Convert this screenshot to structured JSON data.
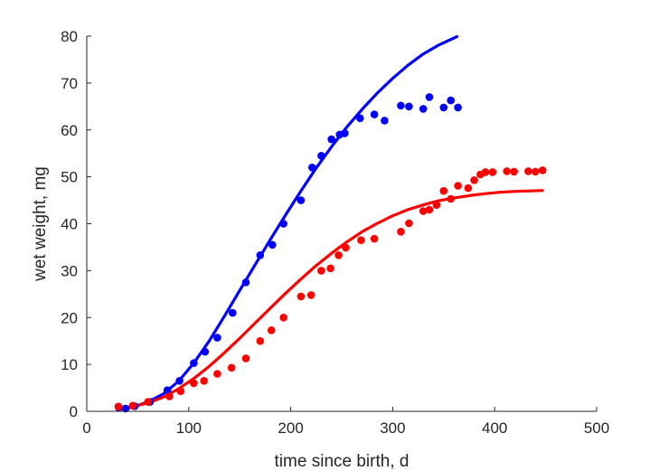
{
  "chart_data": {
    "type": "scatter",
    "xlabel": "time since birth, d",
    "ylabel": "wet weight, mg",
    "xlim": [
      0,
      500
    ],
    "ylim": [
      0,
      80
    ],
    "xticks": [
      "0",
      "100",
      "200",
      "300",
      "400",
      "500"
    ],
    "yticks": [
      "0",
      "10",
      "20",
      "30",
      "40",
      "50",
      "60",
      "70",
      "80"
    ],
    "grid": false,
    "legend": "none",
    "series": [
      {
        "color": "#0000ff",
        "points": [
          [
            31,
            1.0
          ],
          [
            38,
            0.6
          ],
          [
            47,
            1.1
          ],
          [
            62,
            2.0
          ],
          [
            79,
            4.5
          ],
          [
            91,
            6.5
          ],
          [
            105,
            10.3
          ],
          [
            116,
            12.7
          ],
          [
            128,
            15.7
          ],
          [
            143,
            21.0
          ],
          [
            156,
            27.5
          ],
          [
            170,
            33.3
          ],
          [
            182,
            35.5
          ],
          [
            193,
            40.0
          ],
          [
            210,
            45.0
          ],
          [
            221,
            52.0
          ],
          [
            230,
            54.5
          ],
          [
            240,
            58.0
          ],
          [
            248,
            59.0
          ],
          [
            253,
            59.3
          ],
          [
            268,
            62.5
          ],
          [
            282,
            63.3
          ],
          [
            292,
            62.0
          ],
          [
            308,
            65.2
          ],
          [
            316,
            65.0
          ],
          [
            330,
            64.5
          ],
          [
            336,
            67.0
          ],
          [
            350,
            64.8
          ],
          [
            357,
            66.3
          ],
          [
            364,
            64.8
          ]
        ],
        "fit": [
          [
            30,
            0.3
          ],
          [
            45,
            0.9
          ],
          [
            60,
            2.0
          ],
          [
            75,
            3.7
          ],
          [
            90,
            6.4
          ],
          [
            105,
            10.3
          ],
          [
            120,
            15.0
          ],
          [
            135,
            20.3
          ],
          [
            150,
            25.8
          ],
          [
            165,
            31.2
          ],
          [
            180,
            36.6
          ],
          [
            195,
            41.9
          ],
          [
            210,
            47.0
          ],
          [
            225,
            51.9
          ],
          [
            240,
            56.4
          ],
          [
            255,
            60.6
          ],
          [
            270,
            64.4
          ],
          [
            285,
            67.9
          ],
          [
            300,
            71.0
          ],
          [
            315,
            73.8
          ],
          [
            330,
            76.2
          ],
          [
            345,
            78.1
          ],
          [
            363,
            79.9
          ]
        ]
      },
      {
        "color": "#ff0000",
        "points": [
          [
            31,
            1.0
          ],
          [
            45,
            1.2
          ],
          [
            60,
            2.0
          ],
          [
            81,
            3.2
          ],
          [
            92,
            4.3
          ],
          [
            105,
            6.0
          ],
          [
            115,
            6.5
          ],
          [
            128,
            8.0
          ],
          [
            142,
            9.3
          ],
          [
            156,
            11.3
          ],
          [
            170,
            15.0
          ],
          [
            181,
            17.3
          ],
          [
            193,
            20.0
          ],
          [
            210,
            24.5
          ],
          [
            220,
            24.8
          ],
          [
            230,
            30.0
          ],
          [
            239,
            30.5
          ],
          [
            247,
            33.3
          ],
          [
            254,
            34.9
          ],
          [
            269,
            36.5
          ],
          [
            282,
            36.8
          ],
          [
            308,
            38.3
          ],
          [
            316,
            40.1
          ],
          [
            330,
            42.7
          ],
          [
            336,
            43.0
          ],
          [
            343,
            44.0
          ],
          [
            350,
            47.0
          ],
          [
            357,
            45.3
          ],
          [
            364,
            48.1
          ],
          [
            374,
            47.6
          ],
          [
            380,
            49.3
          ],
          [
            386,
            50.5
          ],
          [
            391,
            51.0
          ],
          [
            398,
            51.0
          ],
          [
            412,
            51.2
          ],
          [
            419,
            51.1
          ],
          [
            433,
            51.2
          ],
          [
            440,
            51.1
          ],
          [
            447,
            51.4
          ]
        ],
        "fit": [
          [
            30,
            0.5
          ],
          [
            45,
            1.0
          ],
          [
            60,
            1.8
          ],
          [
            75,
            3.0
          ],
          [
            90,
            4.8
          ],
          [
            105,
            7.0
          ],
          [
            120,
            9.6
          ],
          [
            135,
            12.5
          ],
          [
            150,
            15.6
          ],
          [
            165,
            18.8
          ],
          [
            180,
            22.0
          ],
          [
            195,
            25.2
          ],
          [
            210,
            28.2
          ],
          [
            225,
            31.1
          ],
          [
            240,
            33.7
          ],
          [
            255,
            36.1
          ],
          [
            270,
            38.3
          ],
          [
            285,
            40.1
          ],
          [
            300,
            41.7
          ],
          [
            315,
            43.0
          ],
          [
            330,
            44.0
          ],
          [
            345,
            44.9
          ],
          [
            360,
            45.5
          ],
          [
            375,
            46.0
          ],
          [
            390,
            46.4
          ],
          [
            405,
            46.7
          ],
          [
            420,
            46.9
          ],
          [
            435,
            47.0
          ],
          [
            447,
            47.1
          ]
        ]
      }
    ]
  }
}
